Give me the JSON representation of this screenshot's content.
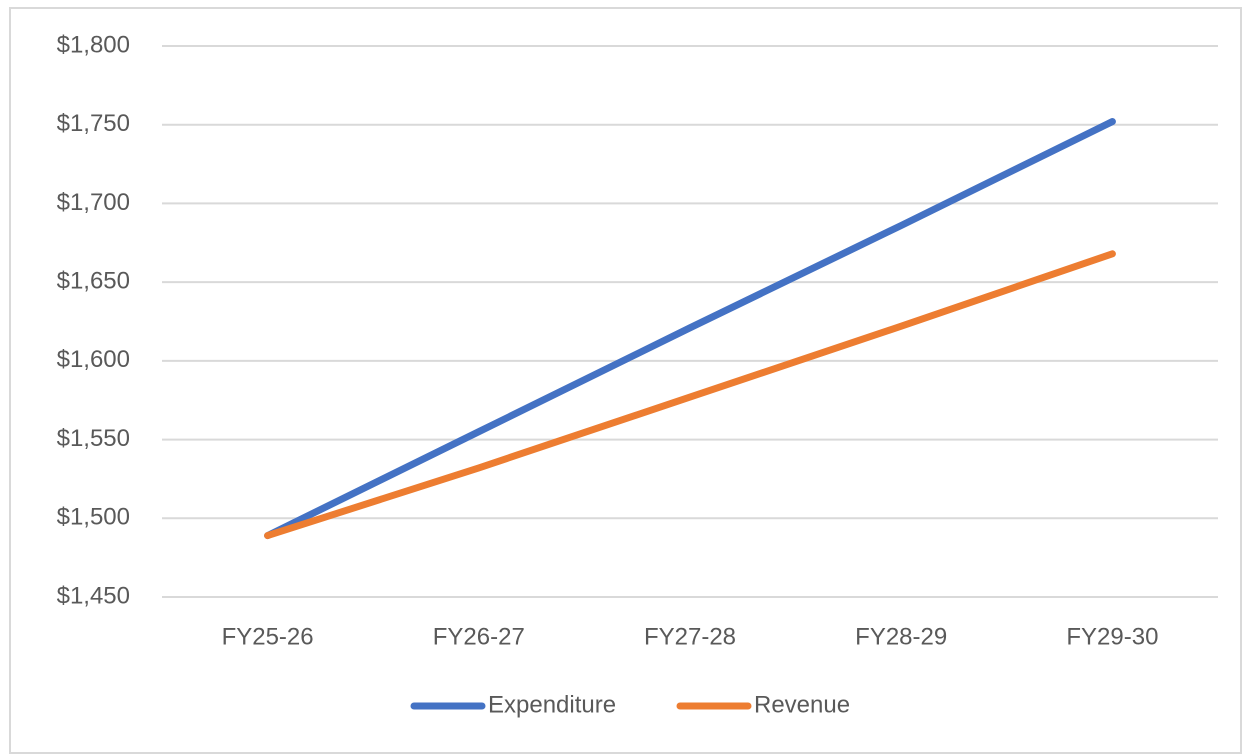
{
  "chart_data": {
    "type": "line",
    "categories": [
      "FY25-26",
      "FY26-27",
      "FY27-28",
      "FY28-29",
      "FY29-30"
    ],
    "series": [
      {
        "name": "Expenditure",
        "color": "#4472c4",
        "values": [
          1489,
          1555,
          1621,
          1686,
          1752
        ]
      },
      {
        "name": "Revenue",
        "color": "#ed7d31",
        "values": [
          1489,
          1532,
          1577,
          1622,
          1668
        ]
      }
    ],
    "ylim": [
      1450,
      1800
    ],
    "yticks": [
      {
        "value": 1450,
        "label": "$1,450"
      },
      {
        "value": 1500,
        "label": "$1,500"
      },
      {
        "value": 1550,
        "label": "$1,550"
      },
      {
        "value": 1600,
        "label": "$1,600"
      },
      {
        "value": 1650,
        "label": "$1,650"
      },
      {
        "value": 1700,
        "label": "$1,700"
      },
      {
        "value": 1750,
        "label": "$1,750"
      },
      {
        "value": 1800,
        "label": "$1,800"
      }
    ],
    "grid": true,
    "legend": "bottom"
  }
}
